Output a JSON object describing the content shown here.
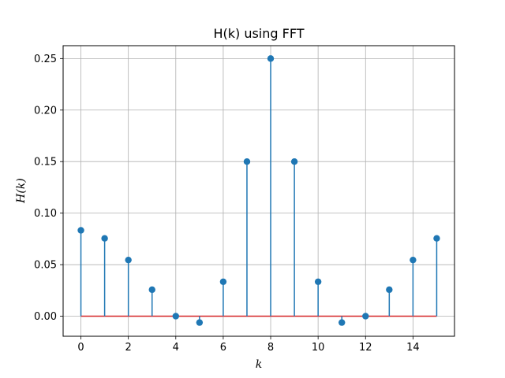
{
  "chart_data": {
    "type": "stem",
    "title": "H(k) using FFT",
    "xlabel": "k",
    "ylabel": "H(k)",
    "xlim": [
      -0.75,
      15.75
    ],
    "ylim": [
      -0.0195,
      0.2625
    ],
    "xticks": [
      0,
      2,
      4,
      6,
      8,
      10,
      12,
      14
    ],
    "yticks": [
      0.0,
      0.05,
      0.1,
      0.15,
      0.2,
      0.25
    ],
    "ytick_labels": [
      "0.00",
      "0.05",
      "0.10",
      "0.15",
      "0.20",
      "0.25"
    ],
    "grid": true,
    "series": [
      {
        "x": [
          0,
          1,
          2,
          3,
          4,
          5,
          6,
          7,
          8,
          9,
          10,
          11,
          12,
          13,
          14,
          15
        ],
        "values": [
          0.0833,
          0.0755,
          0.0545,
          0.0257,
          0.0,
          -0.0062,
          0.0334,
          0.15,
          0.25,
          0.15,
          0.0334,
          -0.0062,
          0.0,
          0.0257,
          0.0545,
          0.0755
        ]
      }
    ],
    "colors": {
      "stem": "#1f77b4",
      "marker": "#1f77b4",
      "baseline": "#d62728",
      "grid": "#b0b0b0"
    }
  }
}
